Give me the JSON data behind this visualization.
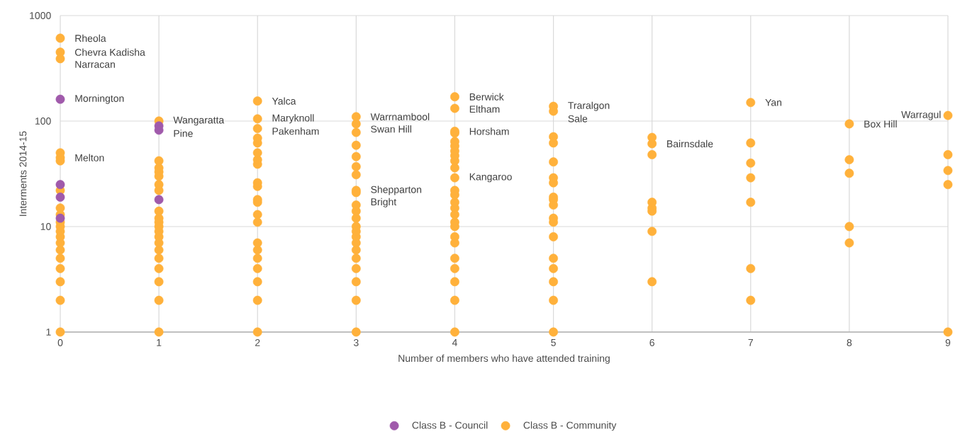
{
  "chart_data": {
    "type": "scatter",
    "xlabel": "Number of members who have attended training",
    "ylabel": "Interments 2014-15",
    "log": "y",
    "grid": true,
    "legend": "bottom",
    "marker": "circle",
    "xlim": [
      0,
      9
    ],
    "ylim": [
      1,
      1000
    ],
    "xticks": [
      0,
      1,
      2,
      3,
      4,
      5,
      6,
      7,
      8,
      9
    ],
    "yticks": [
      1,
      10,
      100,
      1000
    ],
    "series": [
      {
        "name": "Class B - Council",
        "color": "#a05aab",
        "x": [
          0,
          0,
          0,
          0,
          1,
          1,
          1
        ],
        "values": [
          161,
          25,
          19,
          12,
          90,
          82,
          18
        ]
      },
      {
        "name": "Class B - Community",
        "color": "#ffb13b",
        "x": [
          0,
          0,
          0,
          0,
          0,
          0,
          0,
          0,
          0,
          0,
          0,
          0,
          0,
          0,
          0,
          0,
          0,
          0,
          0,
          0,
          1,
          1,
          1,
          1,
          1,
          1,
          1,
          1,
          1,
          1,
          1,
          1,
          1,
          1,
          1,
          1,
          1,
          1,
          1,
          1,
          2,
          2,
          2,
          2,
          2,
          2,
          2,
          2,
          2,
          2,
          2,
          2,
          2,
          2,
          2,
          2,
          2,
          2,
          2,
          2,
          2,
          3,
          3,
          3,
          3,
          3,
          3,
          3,
          3,
          3,
          3,
          3,
          3,
          3,
          3,
          3,
          3,
          3,
          3,
          3,
          3,
          3,
          3,
          4,
          4,
          4,
          4,
          4,
          4,
          4,
          4,
          4,
          4,
          4,
          4,
          4,
          4,
          4,
          4,
          4,
          4,
          4,
          4,
          4,
          4,
          4,
          4,
          4,
          5,
          5,
          5,
          5,
          5,
          5,
          5,
          5,
          5,
          5,
          5,
          5,
          5,
          5,
          5,
          5,
          5,
          5,
          6,
          6,
          6,
          6,
          6,
          6,
          6,
          6,
          7,
          7,
          7,
          7,
          7,
          7,
          7,
          8,
          8,
          8,
          8,
          8,
          9,
          9,
          9,
          9,
          9
        ],
        "values": [
          1,
          2,
          3,
          4,
          5,
          6,
          7,
          8,
          9,
          10,
          11,
          13,
          15,
          22,
          42,
          45,
          50,
          390,
          450,
          610,
          1,
          2,
          3,
          4,
          5,
          6,
          7,
          8,
          9,
          10,
          11,
          12,
          14,
          22,
          25,
          30,
          33,
          36,
          42,
          100,
          1,
          2,
          3,
          4,
          5,
          6,
          7,
          11,
          13,
          17,
          18,
          24,
          26,
          39,
          43,
          50,
          62,
          69,
          85,
          105,
          155,
          1,
          2,
          3,
          4,
          5,
          6,
          7,
          8,
          9,
          10,
          12,
          14,
          16,
          21,
          22,
          31,
          37,
          46,
          59,
          78,
          94,
          110,
          1,
          2,
          3,
          4,
          5,
          7,
          8,
          10,
          11,
          13,
          15,
          17,
          20,
          22,
          29,
          36,
          42,
          47,
          52,
          58,
          64,
          77,
          80,
          132,
          170,
          1,
          2,
          3,
          4,
          5,
          8,
          11,
          12,
          16,
          18,
          19,
          26,
          29,
          41,
          62,
          71,
          124,
          138,
          3,
          9,
          14,
          15,
          17,
          48,
          61,
          70,
          2,
          4,
          17,
          29,
          40,
          62,
          150,
          7,
          10,
          32,
          43,
          94,
          1,
          25,
          34,
          48,
          113
        ]
      }
    ],
    "annotations": [
      {
        "text": "Rheola",
        "x": 0,
        "y": 610
      },
      {
        "text": "Chevra Kadisha",
        "x": 0,
        "y": 450
      },
      {
        "text": "Narracan",
        "x": 0,
        "y": 390
      },
      {
        "text": "Mornington",
        "x": 0,
        "y": 161
      },
      {
        "text": "Melton",
        "x": 0,
        "y": 45
      },
      {
        "text": "Wangaratta",
        "x": 1,
        "y": 100
      },
      {
        "text": "Pine",
        "x": 1,
        "y": 82
      },
      {
        "text": "Yalca",
        "x": 2,
        "y": 155
      },
      {
        "text": "Maryknoll",
        "x": 2,
        "y": 105
      },
      {
        "text": "Pakenham",
        "x": 2,
        "y": 85
      },
      {
        "text": "Warrnambool",
        "x": 3,
        "y": 110
      },
      {
        "text": "Swan Hill",
        "x": 3,
        "y": 94
      },
      {
        "text": "Shepparton",
        "x": 3,
        "y": 22
      },
      {
        "text": "Bright",
        "x": 3,
        "y": 21
      },
      {
        "text": "Berwick",
        "x": 4,
        "y": 170
      },
      {
        "text": "Eltham",
        "x": 4,
        "y": 132
      },
      {
        "text": "Horsham",
        "x": 4,
        "y": 80
      },
      {
        "text": "Kangaroo",
        "x": 4,
        "y": 29
      },
      {
        "text": "Traralgon",
        "x": 5,
        "y": 138
      },
      {
        "text": "Sale",
        "x": 5,
        "y": 124
      },
      {
        "text": "Bairnsdale",
        "x": 6,
        "y": 61
      },
      {
        "text": "Yan",
        "x": 7,
        "y": 150
      },
      {
        "text": "Box Hill",
        "x": 8,
        "y": 94
      },
      {
        "text": "Warragul",
        "x": 9,
        "y": 113
      }
    ]
  }
}
